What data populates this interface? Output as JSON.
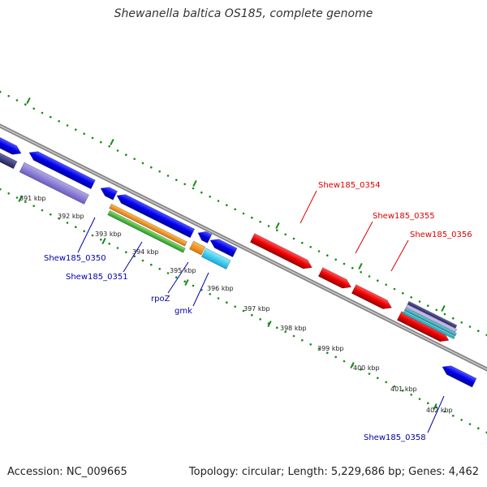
{
  "title": "Shewanella baltica OS185, complete genome",
  "footer": {
    "accession": "Accession: NC_009665",
    "topology": "Topology: circular; Length: 5,229,686 bp; Genes: 4,462"
  },
  "colors": {
    "backbone": "#888888",
    "ticks": "#1a8a1a",
    "blue": "#0000dd",
    "red": "#ee0000",
    "label_blue": "#0000aa",
    "label_red": "#dd0000"
  },
  "kbp_labels": [
    "391 kbp",
    "392 kbp",
    "393 kbp",
    "394 kbp",
    "395 kbp",
    "396 kbp",
    "397 kbp",
    "398 kbp",
    "399 kbp",
    "400 kbp",
    "401 kbp",
    "402 kbp"
  ],
  "gene_labels": [
    "Shew185_0350",
    "Shew185_0351",
    "rpoZ",
    "gmk",
    "Shew185_0354",
    "Shew185_0355",
    "Shew185_0356",
    "Shew185_0358"
  ]
}
